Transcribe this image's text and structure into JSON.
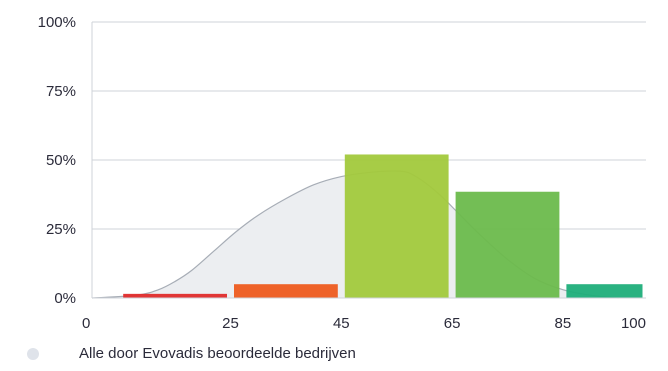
{
  "chart_data": {
    "type": "bar",
    "bins": [
      {
        "from": 5,
        "to": 25,
        "value": 1.5,
        "color": "#e02b2b"
      },
      {
        "from": 25,
        "to": 45,
        "value": 5,
        "color": "#ee5a1e"
      },
      {
        "from": 45,
        "to": 65,
        "value": 52,
        "color": "#a2c93c"
      },
      {
        "from": 65,
        "to": 85,
        "value": 38.5,
        "color": "#6cbb4c"
      },
      {
        "from": 85,
        "to": 100,
        "value": 5,
        "color": "#1fae7a"
      }
    ],
    "distribution": {
      "name": "Alle door Evovadis beoordeelde bedrijven",
      "fill": "#eceef1",
      "stroke": "#a7adb6",
      "x": [
        0,
        8,
        12,
        15,
        18,
        22,
        26,
        30,
        35,
        40,
        45,
        50,
        54,
        57,
        60,
        63,
        66,
        70,
        75,
        80,
        85,
        90,
        95
      ],
      "y": [
        0,
        1,
        3,
        6,
        10,
        17,
        24,
        30,
        36,
        41,
        44,
        45.5,
        46,
        45.5,
        42,
        37,
        31,
        23,
        14,
        7,
        3,
        1,
        0
      ]
    },
    "x_ticks": [
      "0",
      "25",
      "45",
      "65",
      "85",
      "100"
    ],
    "x_tick_values": [
      0,
      25,
      45,
      65,
      85,
      100
    ],
    "y_ticks": [
      "0%",
      "25%",
      "50%",
      "75%",
      "100%"
    ],
    "y_tick_values": [
      0,
      25,
      50,
      75,
      100
    ],
    "xlim": [
      0,
      100
    ],
    "ylim": [
      0,
      100
    ],
    "grid": "horizontal",
    "legend_position": "bottom-left"
  }
}
